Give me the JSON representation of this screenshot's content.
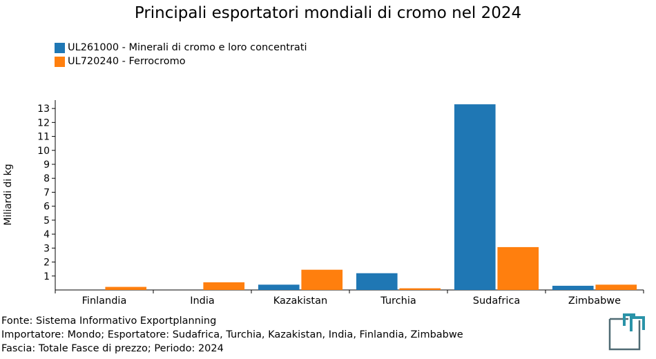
{
  "chart_data": {
    "type": "bar",
    "title": "Principali esportatori mondiali di cromo nel 2024",
    "ylabel": "Miliardi di kg",
    "xlabel": "",
    "categories": [
      "Finlandia",
      "India",
      "Kazakistan",
      "Turchia",
      "Sudafrica",
      "Zimbabwe"
    ],
    "series": [
      {
        "name": "UL261000 - Minerali di cromo e loro concentrati",
        "color": "#1f77b4",
        "values": [
          0,
          0,
          0.38,
          1.2,
          13.3,
          0.3
        ]
      },
      {
        "name": "UL720240 - Ferrocromo",
        "color": "#ff7f0e",
        "values": [
          0.22,
          0.55,
          1.45,
          0.12,
          3.07,
          0.38
        ]
      }
    ],
    "yticks": [
      1,
      2,
      3,
      4,
      5,
      6,
      7,
      8,
      9,
      10,
      11,
      12,
      13
    ],
    "ylim": [
      0,
      13.6
    ],
    "grid": false,
    "legend_position": "top-left"
  },
  "footer": {
    "source": "Fonte: Sistema Informativo Exportplanning",
    "filters": "Importatore: Mondo; Esportatore: Sudafrica, Turchia, Kazakistan, India, Finlandia, Zimbabwe",
    "range": "Fascia: Totale Fasce di prezzo; Periodo: 2024"
  },
  "logo": {
    "icon": "exportplanning-logo-icon",
    "color": "#2a93a8",
    "dark": "#4f6a73"
  }
}
